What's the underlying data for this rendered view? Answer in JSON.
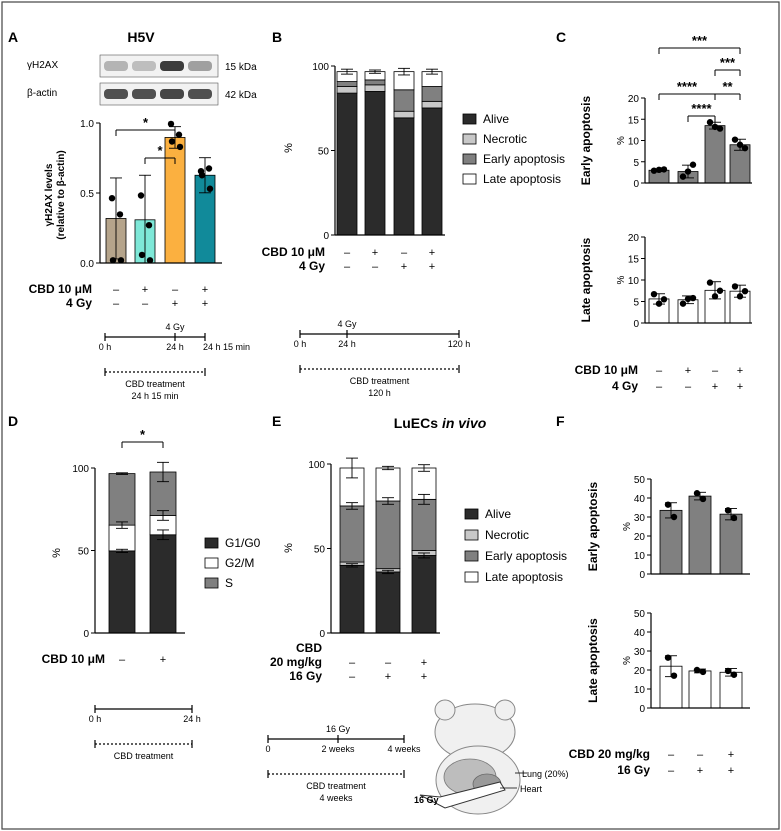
{
  "colors": {
    "alive": "#2b2b2b",
    "necrotic": "#c8c8c8",
    "early": "#808080",
    "late": "#ffffff",
    "panelA_ctrl": "#b5a48b",
    "panelA_cbd": "#7ee8d8",
    "panelA_rad": "#fbb040",
    "panelA_combo": "#118a9a",
    "border": "#444444"
  },
  "chart_data": [
    {
      "panel": "A",
      "type": "bar",
      "title": "H5V",
      "blot": {
        "rows": [
          {
            "label": "γH2AX",
            "size": "15 kDa"
          },
          {
            "label": "β-actin",
            "size": "42 kDa"
          }
        ]
      },
      "ylabel": "γH2AX levels",
      "ylabel2": "(relative to β-actin)",
      "ylim": [
        0,
        1.0
      ],
      "yticks": [
        "0.0",
        "0.5",
        "1.0"
      ],
      "values": [
        0.33,
        0.32,
        0.93,
        0.65
      ],
      "errors": [
        0.3,
        0.33,
        0.08,
        0.13
      ],
      "points": [
        [
          0.48,
          0.36,
          0.02,
          0.02
        ],
        [
          0.5,
          0.28,
          0.06,
          0.02
        ],
        [
          1.03,
          0.95,
          0.9,
          0.86
        ],
        [
          0.68,
          0.7,
          0.65,
          0.55
        ]
      ],
      "significance": [
        {
          "from": 0,
          "to": 2,
          "label": "*"
        },
        {
          "from": 1,
          "to": 2,
          "label": "*"
        }
      ],
      "conditions": [
        {
          "label": "CBD 10 μM",
          "signs": [
            "–",
            "+",
            "–",
            "+"
          ]
        },
        {
          "label": "4 Gy",
          "signs": [
            "–",
            "–",
            "+",
            "+"
          ]
        }
      ],
      "timeline": {
        "top": "4 Gy",
        "ticks": [
          "0 h",
          "24 h",
          "24 h 15 min"
        ],
        "treatment": "CBD treatment",
        "duration": "24 h 15 min"
      }
    },
    {
      "panel": "B",
      "type": "bar",
      "stacked": true,
      "ylabel": "%",
      "ylim": [
        0,
        100
      ],
      "yticks": [
        "0",
        "50",
        "100"
      ],
      "series": [
        {
          "name": "Alive",
          "values": [
            86,
            87,
            71,
            77
          ]
        },
        {
          "name": "Necrotic",
          "values": [
            4,
            4,
            4,
            4
          ]
        },
        {
          "name": "Early apoptosis",
          "values": [
            3,
            3,
            13,
            9
          ]
        },
        {
          "name": "Late apoptosis",
          "values": [
            6,
            5,
            11,
            9
          ]
        }
      ],
      "conditions": [
        {
          "label": "CBD 10 μM",
          "signs": [
            "–",
            "+",
            "–",
            "+"
          ]
        },
        {
          "label": "4 Gy",
          "signs": [
            "–",
            "–",
            "+",
            "+"
          ]
        }
      ],
      "timeline": {
        "top": "4 Gy",
        "ticks": [
          "0 h",
          "24 h",
          "120 h"
        ],
        "treatment": "CBD treatment",
        "duration": "120 h"
      }
    },
    {
      "panel": "C",
      "type": "bar",
      "sub": [
        {
          "ylabel": "Early apoptosis",
          "unit": "%",
          "ylim": [
            0,
            20
          ],
          "yticks": [
            "0",
            "5",
            "10",
            "15",
            "20"
          ],
          "values": [
            3,
            2.7,
            13.5,
            9
          ],
          "errors": [
            0.3,
            1.5,
            0.8,
            1.3
          ],
          "points": [
            [
              2.9,
              3.1,
              3.2
            ],
            [
              1.5,
              2.7,
              4.3
            ],
            [
              14.3,
              13.2,
              12.8
            ],
            [
              10.2,
              9.0,
              8.2
            ]
          ]
        },
        {
          "ylabel": "Late apoptosis",
          "unit": "%",
          "ylim": [
            0,
            20
          ],
          "yticks": [
            "0",
            "5",
            "10",
            "15",
            "20"
          ],
          "values": [
            5.6,
            5.4,
            7.6,
            7.4
          ],
          "errors": [
            1.2,
            0.9,
            2.0,
            1.4
          ],
          "points": [
            [
              6.7,
              4.5,
              5.5
            ],
            [
              4.5,
              5.6,
              5.8
            ],
            [
              9.4,
              6.2,
              7.5
            ],
            [
              8.5,
              6.2,
              7.4
            ]
          ]
        }
      ],
      "significance": [
        {
          "from": 0,
          "to": 3,
          "label": "***"
        },
        {
          "from": 2,
          "to": 3,
          "label": "***"
        },
        {
          "from": 0,
          "to": 2,
          "label": "****"
        },
        {
          "from": 2,
          "to": 3,
          "label": "**"
        },
        {
          "from": 1,
          "to": 2,
          "label": "****"
        }
      ],
      "conditions": [
        {
          "label": "CBD 10 μM",
          "signs": [
            "–",
            "+",
            "–",
            "+"
          ]
        },
        {
          "label": "4 Gy",
          "signs": [
            "–",
            "–",
            "+",
            "+"
          ]
        }
      ]
    },
    {
      "panel": "D",
      "type": "bar",
      "stacked": true,
      "ylabel": "%",
      "ylim": [
        0,
        100
      ],
      "yticks": [
        "0",
        "50",
        "100"
      ],
      "series": [
        {
          "name": "G1/G0",
          "values": [
            51,
            61
          ]
        },
        {
          "name": "G2/M",
          "values": [
            16,
            12
          ]
        },
        {
          "name": "S",
          "values": [
            32,
            27
          ]
        }
      ],
      "errors": [
        [
          1,
          3
        ],
        [
          2,
          3
        ],
        [
          0.5,
          6
        ]
      ],
      "significance": [
        {
          "from": 0,
          "to": 1,
          "label": "*"
        }
      ],
      "conditions": [
        {
          "label": "CBD 10 μM",
          "signs": [
            "–",
            "+"
          ]
        }
      ],
      "timeline": {
        "ticks": [
          "0 h",
          "24 h"
        ],
        "treatment": "CBD treatment"
      }
    },
    {
      "panel": "E",
      "type": "bar",
      "stacked": true,
      "title": "LuECs",
      "title_italic": "in vivo",
      "ylabel": "%",
      "ylim": [
        0,
        100
      ],
      "yticks": [
        "0",
        "50",
        "100"
      ],
      "series": [
        {
          "name": "Alive",
          "values": [
            41,
            37,
            47
          ]
        },
        {
          "name": "Necrotic",
          "values": [
            2,
            2,
            3
          ]
        },
        {
          "name": "Early apoptosis",
          "values": [
            34,
            41,
            31
          ]
        },
        {
          "name": "Late apoptosis",
          "values": [
            23,
            20,
            19
          ]
        }
      ],
      "conditions": [
        {
          "label": "CBD",
          "signs": [
            "",
            "",
            ""
          ]
        },
        {
          "label": "20 mg/kg",
          "signs": [
            "–",
            "–",
            "+"
          ]
        },
        {
          "label": "16 Gy",
          "signs": [
            "–",
            "+",
            "+"
          ]
        }
      ],
      "timeline": {
        "top": "16 Gy",
        "ticks": [
          "0",
          "2 weeks",
          "4 weeks"
        ],
        "treatment": "CBD treatment",
        "duration": "4 weeks"
      },
      "mouse": {
        "lung": "Lung (20%)",
        "heart": "Heart",
        "dose": "16 Gy"
      }
    },
    {
      "panel": "F",
      "type": "bar",
      "sub": [
        {
          "ylabel": "Early apoptosis",
          "unit": "%",
          "ylim": [
            0,
            50
          ],
          "yticks": [
            "0",
            "10",
            "20",
            "30",
            "40",
            "50"
          ],
          "values": [
            33.5,
            41,
            31.5
          ],
          "errors": [
            4,
            2,
            3
          ],
          "points": [
            [
              36.5,
              30
            ],
            [
              42.5,
              39.5
            ],
            [
              33.5,
              29.5
            ]
          ]
        },
        {
          "ylabel": "Late apoptosis",
          "unit": "%",
          "ylim": [
            0,
            50
          ],
          "yticks": [
            "0",
            "10",
            "20",
            "30",
            "40",
            "50"
          ],
          "values": [
            22,
            19.5,
            18.8
          ],
          "errors": [
            5.5,
            1,
            2
          ],
          "points": [
            [
              26.5,
              17
            ],
            [
              20,
              19
            ],
            [
              19.5,
              17.5
            ]
          ]
        }
      ],
      "conditions": [
        {
          "label": "CBD 20 mg/kg",
          "signs": [
            "–",
            "–",
            "+"
          ]
        },
        {
          "label": "16 Gy",
          "signs": [
            "–",
            "+",
            "+"
          ]
        }
      ]
    }
  ]
}
